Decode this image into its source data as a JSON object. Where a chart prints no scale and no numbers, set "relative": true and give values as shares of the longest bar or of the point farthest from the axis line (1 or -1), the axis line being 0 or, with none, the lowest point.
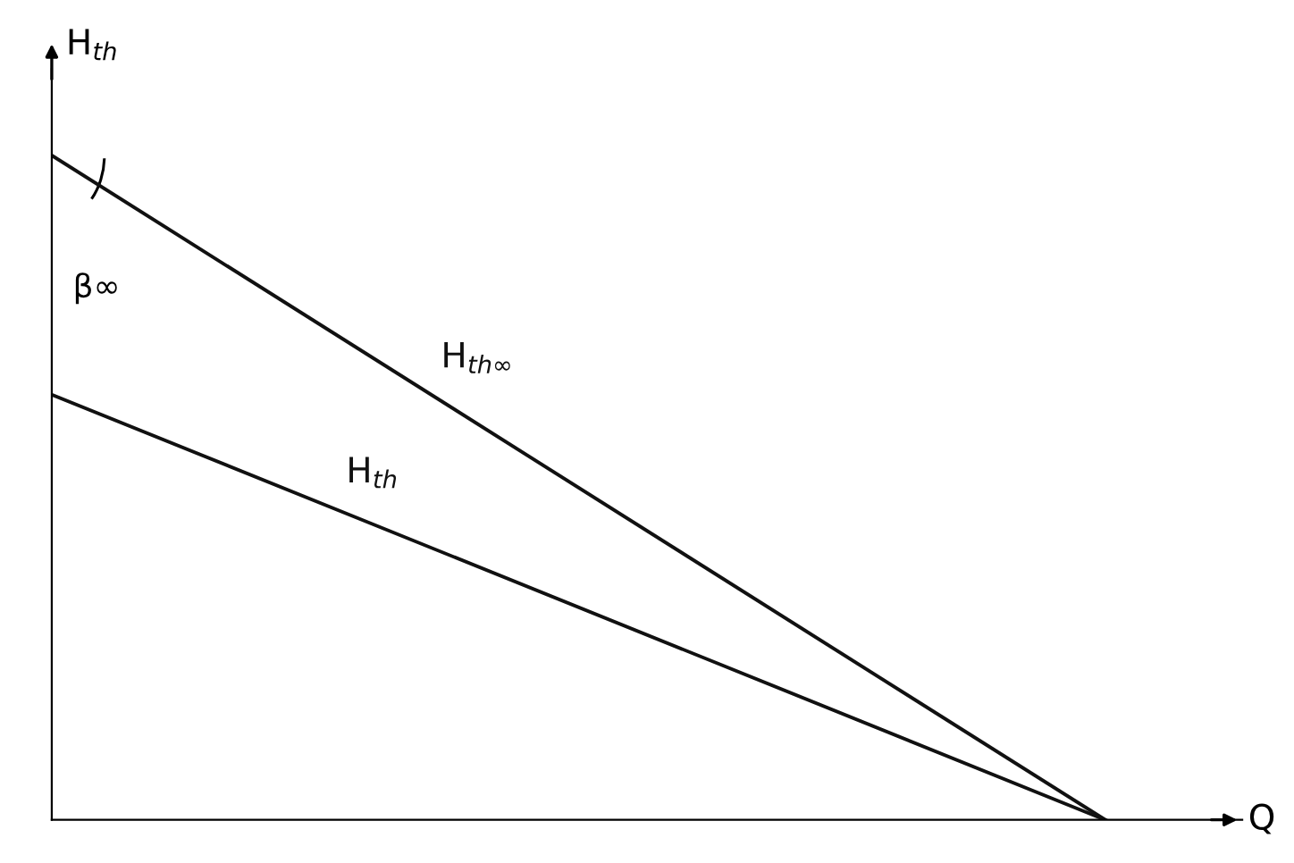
{
  "chart_data": {
    "type": "line",
    "relative": true,
    "xlabel": "Q",
    "ylabel": "H$_{th}$",
    "categories": [
      null,
      null
    ],
    "series": [
      {
        "name": "H$_{th∞}$",
        "color": "#111111",
        "values": [
          1,
          0
        ]
      },
      {
        "name": "H$_{th}$",
        "color": "#111111",
        "values": [
          0.64,
          0
        ]
      }
    ],
    "annotations": [
      "β∞"
    ],
    "grid": false,
    "legend": false,
    "line_style": "solid"
  }
}
